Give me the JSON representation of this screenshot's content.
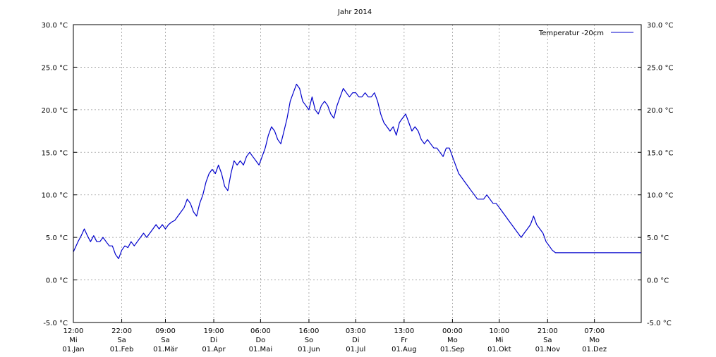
{
  "chart_data": {
    "type": "line",
    "title": "Jahr 2014",
    "xlabel": "",
    "ylabel": "",
    "ylim": [
      -5,
      30
    ],
    "y_ticks": [
      -5,
      0,
      5,
      10,
      15,
      20,
      25,
      30
    ],
    "y_tick_labels": [
      "-5.0 °C",
      "0.0 °C",
      "5.0 °C",
      "10.0 °C",
      "15.0 °C",
      "20.0 °C",
      "25.0 °C",
      "30.0 °C"
    ],
    "x_range_days": [
      0,
      364
    ],
    "x_ticks": [
      {
        "day": 0,
        "time": "12:00",
        "weekday": "Mi",
        "date": "01.Jan"
      },
      {
        "day": 31,
        "time": "22:00",
        "weekday": "Sa",
        "date": "01.Feb"
      },
      {
        "day": 59,
        "time": "09:00",
        "weekday": "Sa",
        "date": "01.Mär"
      },
      {
        "day": 90,
        "time": "19:00",
        "weekday": "Di",
        "date": "01.Apr"
      },
      {
        "day": 120,
        "time": "06:00",
        "weekday": "Do",
        "date": "01.Mai"
      },
      {
        "day": 151,
        "time": "16:00",
        "weekday": "So",
        "date": "01.Jun"
      },
      {
        "day": 181,
        "time": "03:00",
        "weekday": "Di",
        "date": "01.Jul"
      },
      {
        "day": 212,
        "time": "13:00",
        "weekday": "Fr",
        "date": "01.Aug"
      },
      {
        "day": 243,
        "time": "00:00",
        "weekday": "Mo",
        "date": "01.Sep"
      },
      {
        "day": 273,
        "time": "10:00",
        "weekday": "Mi",
        "date": "01.Okt"
      },
      {
        "day": 304,
        "time": "21:00",
        "weekday": "Sa",
        "date": "01.Nov"
      },
      {
        "day": 334,
        "time": "07:00",
        "weekday": "Mo",
        "date": "01.Dez"
      }
    ],
    "grid": true,
    "legend_position": "top-right",
    "series_color": "#0000cc",
    "series": [
      {
        "name": "Temperatur  -20cm",
        "points": [
          [
            0,
            3.3
          ],
          [
            3,
            4.5
          ],
          [
            5,
            5.2
          ],
          [
            7,
            6.0
          ],
          [
            9,
            5.2
          ],
          [
            11,
            4.5
          ],
          [
            13,
            5.2
          ],
          [
            15,
            4.5
          ],
          [
            17,
            4.5
          ],
          [
            19,
            5.0
          ],
          [
            21,
            4.5
          ],
          [
            23,
            4.0
          ],
          [
            25,
            4.0
          ],
          [
            27,
            3.0
          ],
          [
            29,
            2.5
          ],
          [
            31,
            3.5
          ],
          [
            33,
            4.0
          ],
          [
            35,
            3.8
          ],
          [
            37,
            4.5
          ],
          [
            39,
            4.0
          ],
          [
            41,
            4.5
          ],
          [
            43,
            5.0
          ],
          [
            45,
            5.5
          ],
          [
            47,
            5.0
          ],
          [
            49,
            5.5
          ],
          [
            51,
            6.0
          ],
          [
            53,
            6.5
          ],
          [
            55,
            6.0
          ],
          [
            57,
            6.5
          ],
          [
            59,
            6.0
          ],
          [
            61,
            6.5
          ],
          [
            63,
            6.8
          ],
          [
            65,
            7.0
          ],
          [
            67,
            7.5
          ],
          [
            69,
            8.0
          ],
          [
            71,
            8.5
          ],
          [
            73,
            9.5
          ],
          [
            75,
            9.0
          ],
          [
            77,
            8.0
          ],
          [
            79,
            7.5
          ],
          [
            81,
            9.0
          ],
          [
            83,
            10.0
          ],
          [
            85,
            11.5
          ],
          [
            87,
            12.5
          ],
          [
            89,
            13.0
          ],
          [
            91,
            12.5
          ],
          [
            93,
            13.5
          ],
          [
            95,
            12.5
          ],
          [
            97,
            11.0
          ],
          [
            99,
            10.5
          ],
          [
            101,
            12.5
          ],
          [
            103,
            14.0
          ],
          [
            105,
            13.5
          ],
          [
            107,
            14.0
          ],
          [
            109,
            13.5
          ],
          [
            111,
            14.5
          ],
          [
            113,
            15.0
          ],
          [
            115,
            14.5
          ],
          [
            117,
            14.0
          ],
          [
            119,
            13.5
          ],
          [
            121,
            14.5
          ],
          [
            123,
            15.5
          ],
          [
            125,
            17.0
          ],
          [
            127,
            18.0
          ],
          [
            129,
            17.5
          ],
          [
            131,
            16.5
          ],
          [
            133,
            16.0
          ],
          [
            135,
            17.5
          ],
          [
            137,
            19.0
          ],
          [
            139,
            21.0
          ],
          [
            141,
            22.0
          ],
          [
            143,
            23.0
          ],
          [
            145,
            22.5
          ],
          [
            147,
            21.0
          ],
          [
            149,
            20.5
          ],
          [
            151,
            20.0
          ],
          [
            153,
            21.5
          ],
          [
            155,
            20.0
          ],
          [
            157,
            19.5
          ],
          [
            159,
            20.5
          ],
          [
            161,
            21.0
          ],
          [
            163,
            20.5
          ],
          [
            165,
            19.5
          ],
          [
            167,
            19.0
          ],
          [
            169,
            20.5
          ],
          [
            171,
            21.5
          ],
          [
            173,
            22.5
          ],
          [
            175,
            22.0
          ],
          [
            177,
            21.5
          ],
          [
            179,
            22.0
          ],
          [
            181,
            22.0
          ],
          [
            183,
            21.5
          ],
          [
            185,
            21.5
          ],
          [
            187,
            22.0
          ],
          [
            189,
            21.5
          ],
          [
            191,
            21.5
          ],
          [
            193,
            22.0
          ],
          [
            195,
            21.0
          ],
          [
            197,
            19.5
          ],
          [
            199,
            18.5
          ],
          [
            201,
            18.0
          ],
          [
            203,
            17.5
          ],
          [
            205,
            18.0
          ],
          [
            207,
            17.0
          ],
          [
            209,
            18.5
          ],
          [
            211,
            19.0
          ],
          [
            213,
            19.5
          ],
          [
            215,
            18.5
          ],
          [
            217,
            17.5
          ],
          [
            219,
            18.0
          ],
          [
            221,
            17.5
          ],
          [
            223,
            16.5
          ],
          [
            225,
            16.0
          ],
          [
            227,
            16.5
          ],
          [
            229,
            16.0
          ],
          [
            231,
            15.5
          ],
          [
            233,
            15.5
          ],
          [
            235,
            15.0
          ],
          [
            237,
            14.5
          ],
          [
            239,
            15.5
          ],
          [
            241,
            15.5
          ],
          [
            243,
            14.5
          ],
          [
            245,
            13.5
          ],
          [
            247,
            12.5
          ],
          [
            249,
            12.0
          ],
          [
            251,
            11.5
          ],
          [
            253,
            11.0
          ],
          [
            255,
            10.5
          ],
          [
            257,
            10.0
          ],
          [
            259,
            9.5
          ],
          [
            261,
            9.5
          ],
          [
            263,
            9.5
          ],
          [
            265,
            10.0
          ],
          [
            267,
            9.5
          ],
          [
            269,
            9.0
          ],
          [
            271,
            9.0
          ],
          [
            273,
            8.5
          ],
          [
            275,
            8.0
          ],
          [
            277,
            7.5
          ],
          [
            279,
            7.0
          ],
          [
            281,
            6.5
          ],
          [
            283,
            6.0
          ],
          [
            285,
            5.5
          ],
          [
            287,
            5.0
          ],
          [
            289,
            5.5
          ],
          [
            291,
            6.0
          ],
          [
            293,
            6.5
          ],
          [
            295,
            7.5
          ],
          [
            297,
            6.5
          ],
          [
            299,
            6.0
          ],
          [
            301,
            5.5
          ],
          [
            303,
            4.5
          ],
          [
            305,
            4.0
          ],
          [
            307,
            3.5
          ],
          [
            309,
            3.2
          ],
          [
            364,
            3.2
          ]
        ]
      }
    ]
  }
}
